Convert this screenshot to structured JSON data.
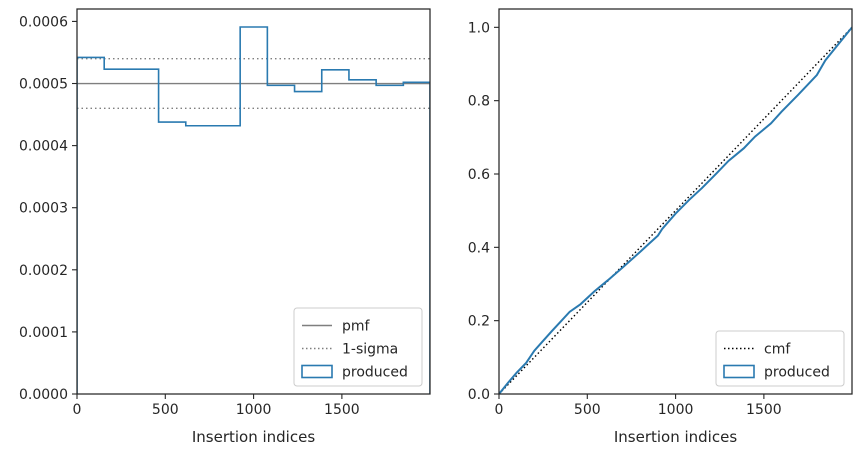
{
  "chart_data": [
    {
      "type": "step",
      "xlabel": "Insertion indices",
      "ylabel": "",
      "xlim": [
        0,
        1999
      ],
      "ylim": [
        0,
        0.00062
      ],
      "xticks": [
        "0",
        "500",
        "1000",
        "1500"
      ],
      "xtick_values": [
        0,
        500,
        1000,
        1500
      ],
      "yticks": [
        "0.0000",
        "0.0001",
        "0.0002",
        "0.0003",
        "0.0004",
        "0.0005",
        "0.0006"
      ],
      "ytick_values": [
        0,
        0.0001,
        0.0002,
        0.0003,
        0.0004,
        0.0005,
        0.0006
      ],
      "pmf": 0.0005,
      "sigma_upper": 0.00054,
      "sigma_lower": 0.00046,
      "histogram": {
        "bin_edges": [
          0,
          154,
          462,
          616,
          924,
          1078,
          1232,
          1386,
          1540,
          1694,
          1848,
          1999
        ],
        "values": [
          0.000542,
          0.000523,
          0.000438,
          0.000432,
          0.000591,
          0.000497,
          0.000487,
          0.000522,
          0.000506,
          0.000497,
          0.000502
        ]
      },
      "legend": {
        "position": "lower-right",
        "entries": [
          {
            "label": "pmf",
            "style": "solid",
            "color": "#7f7f7f"
          },
          {
            "label": "1-sigma",
            "style": "dotted",
            "color": "#7f7f7f"
          },
          {
            "label": "produced",
            "style": "box",
            "color": "#2a7ab0"
          }
        ]
      }
    },
    {
      "type": "line",
      "xlabel": "Insertion indices",
      "ylabel": "",
      "xlim": [
        0,
        1999
      ],
      "ylim": [
        0,
        1.05
      ],
      "xticks": [
        "0",
        "500",
        "1000",
        "1500"
      ],
      "xtick_values": [
        0,
        500,
        1000,
        1500
      ],
      "yticks": [
        "0.0",
        "0.2",
        "0.4",
        "0.6",
        "0.8",
        "1.0"
      ],
      "ytick_values": [
        0,
        0.2,
        0.4,
        0.6,
        0.8,
        1.0
      ],
      "series": [
        {
          "label": "cmf",
          "style": "dotted",
          "color": "#000000",
          "x": [
            0,
            1999
          ],
          "y": [
            0,
            1.0
          ]
        },
        {
          "label": "produced",
          "style": "solid",
          "color": "#2a7ab0",
          "x": [
            0,
            50,
            100,
            154,
            200,
            250,
            300,
            350,
            400,
            462,
            540,
            616,
            700,
            800,
            850,
            900,
            924,
            1000,
            1078,
            1150,
            1232,
            1300,
            1386,
            1450,
            1540,
            1600,
            1694,
            1800,
            1848,
            1999
          ],
          "y": [
            0,
            0.03,
            0.058,
            0.085,
            0.118,
            0.145,
            0.172,
            0.198,
            0.224,
            0.245,
            0.28,
            0.31,
            0.345,
            0.388,
            0.41,
            0.432,
            0.45,
            0.492,
            0.53,
            0.562,
            0.602,
            0.636,
            0.67,
            0.702,
            0.738,
            0.77,
            0.816,
            0.87,
            0.91,
            1.0
          ]
        }
      ],
      "legend": {
        "position": "lower-right",
        "entries": [
          {
            "label": "cmf",
            "style": "dotted",
            "color": "#000000"
          },
          {
            "label": "produced",
            "style": "box",
            "color": "#2a7ab0"
          }
        ]
      }
    }
  ]
}
